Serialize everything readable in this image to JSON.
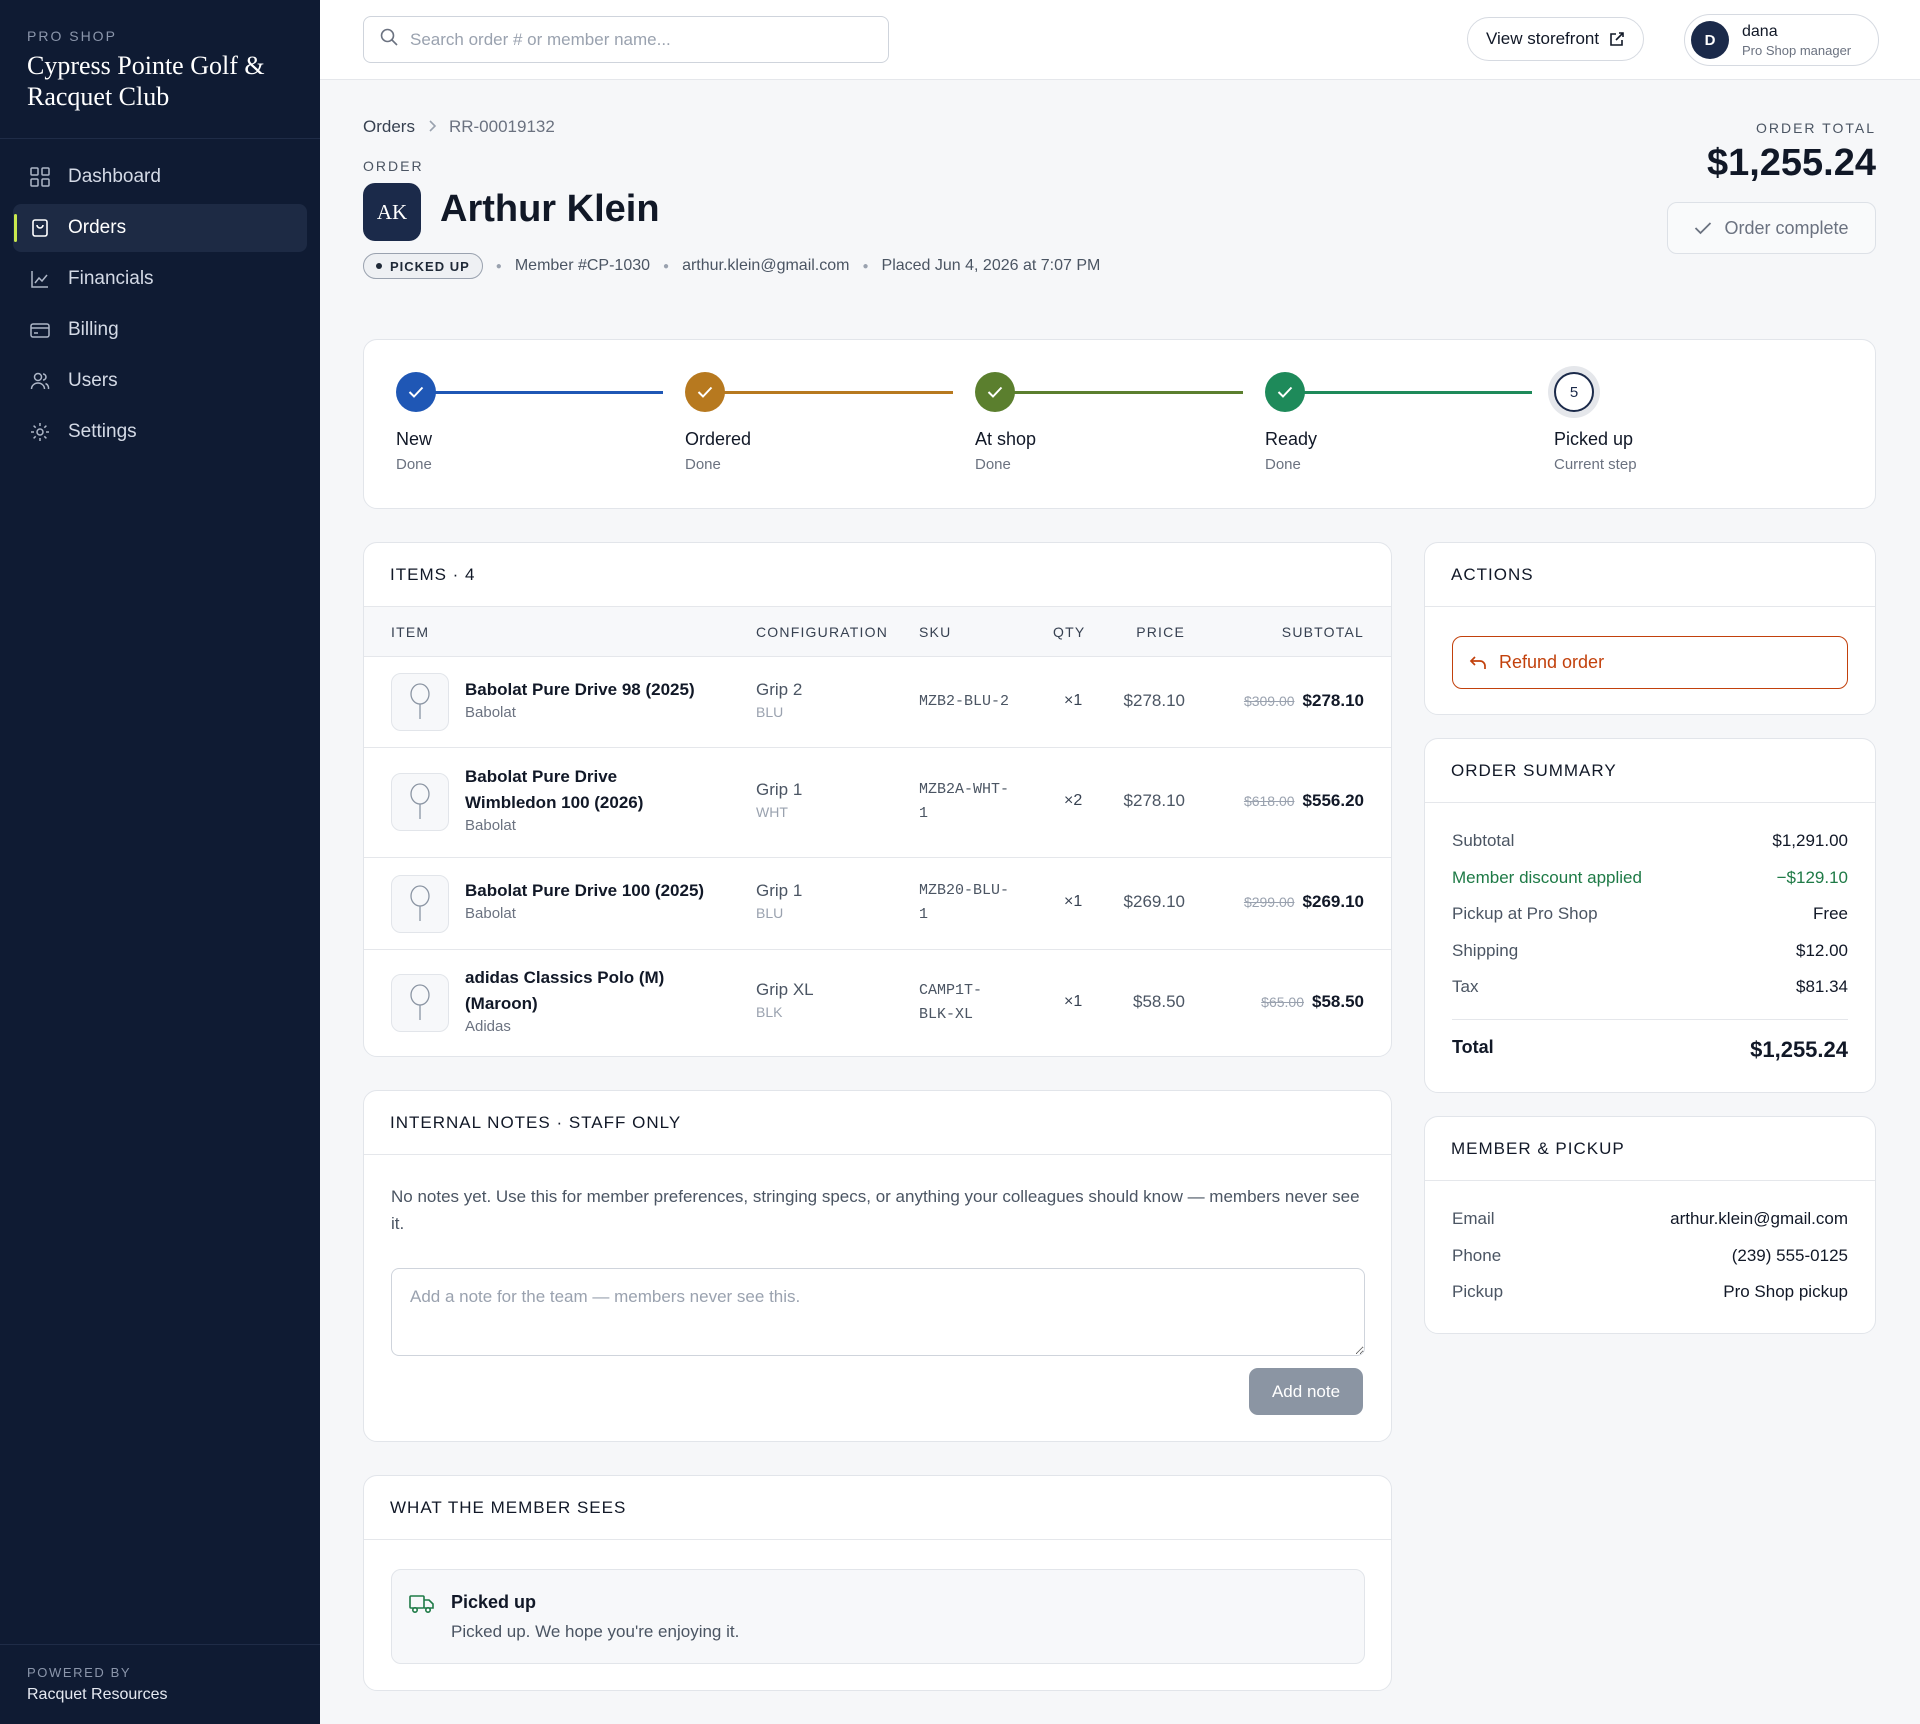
{
  "sidebar": {
    "eyebrow": "PRO SHOP",
    "club_name": "Cypress Pointe Golf & Racquet Club",
    "items": [
      {
        "label": "Dashboard",
        "icon": "grid-icon"
      },
      {
        "label": "Orders",
        "icon": "bag-icon",
        "active": true
      },
      {
        "label": "Financials",
        "icon": "chart-icon"
      },
      {
        "label": "Billing",
        "icon": "card-icon"
      },
      {
        "label": "Users",
        "icon": "users-icon"
      },
      {
        "label": "Settings",
        "icon": "gear-icon"
      }
    ],
    "powered_by_label": "POWERED BY",
    "powered_by_name": "Racquet Resources",
    "accent_color": "#c9e84e"
  },
  "topbar": {
    "search_placeholder": "Search order # or member name...",
    "storefront_label": "View storefront",
    "user": {
      "initial": "D",
      "name": "dana",
      "role": "Pro Shop manager"
    }
  },
  "header": {
    "breadcrumb_root": "Orders",
    "breadcrumb_current": "RR-00019132",
    "eyebrow": "ORDER",
    "initials": "AK",
    "member_name": "Arthur Klein",
    "status_badge": "PICKED UP",
    "member_number": "Member #CP-1030",
    "email": "arthur.klein@gmail.com",
    "placed": "Placed Jun 4, 2026 at 7:07 PM",
    "total_label": "ORDER TOTAL",
    "total_value": "$1,255.24",
    "complete_label": "Order complete"
  },
  "stepper": {
    "steps": [
      {
        "label": "New",
        "sub": "Done",
        "color": "#1f57b5"
      },
      {
        "label": "Ordered",
        "sub": "Done",
        "color": "#b7791f"
      },
      {
        "label": "At shop",
        "sub": "Done",
        "color": "#5b7f2e"
      },
      {
        "label": "Ready",
        "sub": "Done",
        "color": "#1e8a5a"
      },
      {
        "label": "Picked up",
        "sub": "Current step",
        "number": "5"
      }
    ]
  },
  "items": {
    "title": "ITEMS · 4",
    "columns": {
      "item": "ITEM",
      "configuration": "CONFIGURATION",
      "sku": "SKU",
      "qty": "QTY",
      "price": "PRICE",
      "subtotal": "SUBTOTAL"
    },
    "rows": [
      {
        "name_lines": [
          "Babolat Pure Drive 98 (2025)"
        ],
        "brand": "Babolat",
        "config": "Grip 2",
        "color": "BLU",
        "sku_lines": [
          "MZB2-BLU-2"
        ],
        "qty": "×1",
        "price": "$278.10",
        "original": "$309.00",
        "subtotal": "$278.10"
      },
      {
        "name_lines": [
          "Babolat Pure Drive",
          "Wimbledon 100 (2026)"
        ],
        "brand": "Babolat",
        "config": "Grip 1",
        "color": "WHT",
        "sku_lines": [
          "MZB2A-WHT-",
          "1"
        ],
        "qty": "×2",
        "price": "$278.10",
        "original": "$618.00",
        "subtotal": "$556.20"
      },
      {
        "name_lines": [
          "Babolat Pure Drive 100 (2025)"
        ],
        "brand": "Babolat",
        "config": "Grip 1",
        "color": "BLU",
        "sku_lines": [
          "MZB20-BLU-",
          "1"
        ],
        "qty": "×1",
        "price": "$269.10",
        "original": "$299.00",
        "subtotal": "$269.10"
      },
      {
        "name_lines": [
          "adidas Classics Polo (M)",
          "(Maroon)"
        ],
        "brand": "Adidas",
        "config": "Grip XL",
        "color": "BLK",
        "sku_lines": [
          "CAMP1T-",
          "BLK-XL"
        ],
        "qty": "×1",
        "price": "$58.50",
        "original": "$65.00",
        "subtotal": "$58.50"
      }
    ]
  },
  "notes": {
    "title": "INTERNAL NOTES · STAFF ONLY",
    "empty_text": "No notes yet. Use this for member preferences, stringing specs, or anything your colleagues should know — members never see it.",
    "placeholder": "Add a note for the team — members never see this.",
    "button": "Add note"
  },
  "member_sees": {
    "title": "WHAT THE MEMBER SEES",
    "status": "Picked up",
    "message": "Picked up. We hope you're enjoying it."
  },
  "actions": {
    "title": "ACTIONS",
    "refund_label": "Refund order"
  },
  "summary": {
    "title": "ORDER SUMMARY",
    "subtotal_label": "Subtotal",
    "subtotal": "$1,291.00",
    "discount_label": "Member discount applied",
    "discount": "−$129.10",
    "pickup_label": "Pickup at Pro Shop",
    "pickup": "Free",
    "shipping_label": "Shipping",
    "shipping": "$12.00",
    "tax_label": "Tax",
    "tax": "$81.34",
    "total_label": "Total",
    "total": "$1,255.24"
  },
  "member_pickup": {
    "title": "MEMBER & PICKUP",
    "email_label": "Email",
    "email": "arthur.klein@gmail.com",
    "phone_label": "Phone",
    "phone": "(239) 555-0125",
    "pickup_label": "Pickup",
    "pickup": "Pro Shop pickup"
  }
}
